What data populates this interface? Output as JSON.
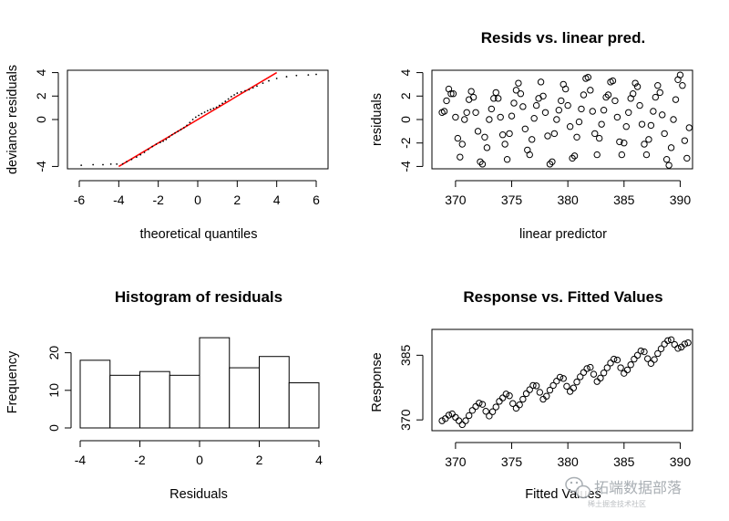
{
  "chart_data": [
    {
      "id": "qq",
      "type": "scatter",
      "title": "",
      "xlabel": "theoretical quantiles",
      "ylabel": "deviance residuals",
      "xlim": [
        -6.6,
        6.6
      ],
      "ylim": [
        -4.2,
        4.2
      ],
      "xticks": [
        "-6",
        "-4",
        "-2",
        "0",
        "2",
        "4",
        "6"
      ],
      "yticks": [
        "-4",
        "0",
        "2",
        "4"
      ],
      "reference_line": {
        "from": [
          -4,
          -4
        ],
        "to": [
          4,
          4
        ],
        "color": "#ff0000"
      },
      "points": [
        [
          -5.9,
          -3.9
        ],
        [
          -5.3,
          -3.85
        ],
        [
          -4.8,
          -3.85
        ],
        [
          -4.4,
          -3.8
        ],
        [
          -4.1,
          -3.8
        ],
        [
          -3.8,
          -3.78
        ],
        [
          -3.6,
          -3.6
        ],
        [
          -3.35,
          -3.4
        ],
        [
          -3.1,
          -3.2
        ],
        [
          -2.9,
          -3.0
        ],
        [
          -2.7,
          -2.8
        ],
        [
          -2.5,
          -2.55
        ],
        [
          -2.3,
          -2.3
        ],
        [
          -2.1,
          -2.1
        ],
        [
          -1.9,
          -1.95
        ],
        [
          -1.75,
          -1.85
        ],
        [
          -1.6,
          -1.7
        ],
        [
          -1.45,
          -1.5
        ],
        [
          -1.3,
          -1.3
        ],
        [
          -1.15,
          -1.15
        ],
        [
          -1.0,
          -1.0
        ],
        [
          -0.85,
          -0.85
        ],
        [
          -0.7,
          -0.7
        ],
        [
          -0.55,
          -0.5
        ],
        [
          -0.4,
          -0.25
        ],
        [
          -0.25,
          0.0
        ],
        [
          -0.1,
          0.2
        ],
        [
          0.05,
          0.35
        ],
        [
          0.2,
          0.5
        ],
        [
          0.35,
          0.62
        ],
        [
          0.5,
          0.75
        ],
        [
          0.65,
          0.85
        ],
        [
          0.8,
          0.95
        ],
        [
          0.95,
          1.05
        ],
        [
          1.1,
          1.2
        ],
        [
          1.25,
          1.38
        ],
        [
          1.4,
          1.55
        ],
        [
          1.55,
          1.75
        ],
        [
          1.7,
          1.95
        ],
        [
          1.85,
          2.1
        ],
        [
          2.0,
          2.25
        ],
        [
          2.2,
          2.35
        ],
        [
          2.4,
          2.45
        ],
        [
          2.6,
          2.55
        ],
        [
          2.8,
          2.7
        ],
        [
          3.0,
          2.85
        ],
        [
          3.3,
          3.1
        ],
        [
          3.6,
          3.3
        ],
        [
          4.0,
          3.5
        ],
        [
          4.5,
          3.65
        ],
        [
          5.0,
          3.75
        ],
        [
          5.6,
          3.8
        ],
        [
          6.0,
          3.85
        ]
      ]
    },
    {
      "id": "resid",
      "type": "scatter",
      "title": "Resids vs. linear pred.",
      "xlabel": "linear predictor",
      "ylabel": "residuals",
      "xlim": [
        367.9,
        391.1
      ],
      "ylim": [
        -4.2,
        4.2
      ],
      "xticks": [
        "370",
        "375",
        "380",
        "385",
        "390"
      ],
      "yticks": [
        "-4",
        "-2",
        "0",
        "2",
        "4"
      ],
      "points": [
        [
          368.8,
          0.6
        ],
        [
          369.0,
          0.7
        ],
        [
          369.2,
          1.6
        ],
        [
          369.4,
          2.6
        ],
        [
          369.6,
          2.2
        ],
        [
          369.8,
          2.2
        ],
        [
          370.0,
          0.2
        ],
        [
          370.2,
          -1.6
        ],
        [
          370.4,
          -3.2
        ],
        [
          370.6,
          -2.1
        ],
        [
          370.8,
          0.0
        ],
        [
          371.0,
          0.6
        ],
        [
          371.2,
          1.7
        ],
        [
          371.4,
          2.4
        ],
        [
          371.6,
          1.9
        ],
        [
          371.8,
          0.6
        ],
        [
          372.0,
          -1.0
        ],
        [
          372.2,
          -3.6
        ],
        [
          372.4,
          -3.8
        ],
        [
          372.6,
          -1.5
        ],
        [
          372.8,
          -2.4
        ],
        [
          373.0,
          0.0
        ],
        [
          373.2,
          0.9
        ],
        [
          373.4,
          1.8
        ],
        [
          373.6,
          2.3
        ],
        [
          373.8,
          1.8
        ],
        [
          374.0,
          0.2
        ],
        [
          374.2,
          -1.3
        ],
        [
          374.4,
          -2.1
        ],
        [
          374.6,
          -3.4
        ],
        [
          374.8,
          -1.2
        ],
        [
          375.0,
          0.3
        ],
        [
          375.2,
          1.4
        ],
        [
          375.4,
          2.5
        ],
        [
          375.6,
          3.1
        ],
        [
          375.8,
          2.2
        ],
        [
          376.0,
          1.1
        ],
        [
          376.2,
          -0.8
        ],
        [
          376.4,
          -2.6
        ],
        [
          376.6,
          -3.0
        ],
        [
          376.8,
          -1.7
        ],
        [
          377.0,
          0.1
        ],
        [
          377.2,
          1.2
        ],
        [
          377.4,
          1.8
        ],
        [
          377.6,
          3.2
        ],
        [
          377.8,
          2.0
        ],
        [
          378.0,
          0.6
        ],
        [
          378.2,
          -1.4
        ],
        [
          378.4,
          -3.8
        ],
        [
          378.6,
          -3.6
        ],
        [
          378.8,
          -1.2
        ],
        [
          379.0,
          0.0
        ],
        [
          379.2,
          0.8
        ],
        [
          379.4,
          1.6
        ],
        [
          379.6,
          3.0
        ],
        [
          379.8,
          2.6
        ],
        [
          380.0,
          1.2
        ],
        [
          380.2,
          -0.6
        ],
        [
          380.4,
          -3.3
        ],
        [
          380.6,
          -3.1
        ],
        [
          380.8,
          -1.5
        ],
        [
          381.0,
          -0.2
        ],
        [
          381.2,
          0.9
        ],
        [
          381.4,
          2.1
        ],
        [
          381.6,
          3.5
        ],
        [
          381.8,
          3.6
        ],
        [
          382.0,
          2.5
        ],
        [
          382.2,
          0.7
        ],
        [
          382.4,
          -1.2
        ],
        [
          382.6,
          -3.0
        ],
        [
          382.8,
          -1.6
        ],
        [
          383.0,
          -0.4
        ],
        [
          383.2,
          0.8
        ],
        [
          383.4,
          1.9
        ],
        [
          383.6,
          2.1
        ],
        [
          383.8,
          3.2
        ],
        [
          384.0,
          3.3
        ],
        [
          384.2,
          1.6
        ],
        [
          384.4,
          0.2
        ],
        [
          384.6,
          -1.9
        ],
        [
          384.8,
          -3.0
        ],
        [
          385.0,
          -2.0
        ],
        [
          385.2,
          -0.6
        ],
        [
          385.4,
          0.6
        ],
        [
          385.6,
          1.8
        ],
        [
          385.8,
          2.2
        ],
        [
          386.0,
          3.1
        ],
        [
          386.2,
          2.8
        ],
        [
          386.4,
          1.2
        ],
        [
          386.6,
          -0.4
        ],
        [
          386.8,
          -2.1
        ],
        [
          387.0,
          -3.0
        ],
        [
          387.2,
          -1.7
        ],
        [
          387.4,
          -0.5
        ],
        [
          387.6,
          0.7
        ],
        [
          387.8,
          1.9
        ],
        [
          388.0,
          2.9
        ],
        [
          388.2,
          2.3
        ],
        [
          388.4,
          0.4
        ],
        [
          388.6,
          -1.2
        ],
        [
          388.8,
          -3.4
        ],
        [
          389.0,
          -3.9
        ],
        [
          389.2,
          -2.4
        ],
        [
          389.4,
          0.0
        ],
        [
          389.6,
          1.7
        ],
        [
          389.8,
          3.4
        ],
        [
          390.0,
          3.8
        ],
        [
          390.2,
          2.9
        ],
        [
          390.4,
          -1.8
        ],
        [
          390.6,
          -3.3
        ],
        [
          390.8,
          -0.7
        ]
      ]
    },
    {
      "id": "hist",
      "type": "bar",
      "title": "Histogram of residuals",
      "xlabel": "Residuals",
      "ylabel": "Frequency",
      "xlim": [
        -4,
        4
      ],
      "ylim": [
        0,
        25
      ],
      "xticks": [
        "-4",
        "-2",
        "0",
        "2",
        "4"
      ],
      "yticks": [
        "0",
        "10",
        "20"
      ],
      "bins": [
        [
          -4,
          -3
        ],
        [
          -3,
          -2
        ],
        [
          -2,
          -1
        ],
        [
          -1,
          0
        ],
        [
          0,
          1
        ],
        [
          1,
          2
        ],
        [
          2,
          3
        ],
        [
          3,
          4
        ]
      ],
      "values": [
        18,
        14,
        15,
        14,
        24,
        16,
        19,
        12
      ]
    },
    {
      "id": "fitted",
      "type": "scatter",
      "title": "Response vs. Fitted Values",
      "xlabel": "Fitted Values",
      "ylabel": "Response",
      "xlim": [
        367.9,
        391.1
      ],
      "ylim": [
        367.5,
        391.0
      ],
      "xticks": [
        "370",
        "375",
        "380",
        "385",
        "390"
      ],
      "yticks": [
        "370",
        "385"
      ],
      "points": [
        [
          368.8,
          369.8
        ],
        [
          369.1,
          370.3
        ],
        [
          369.4,
          371.1
        ],
        [
          369.7,
          371.4
        ],
        [
          370.0,
          370.6
        ],
        [
          370.3,
          369.8
        ],
        [
          370.6,
          368.9
        ],
        [
          370.9,
          369.8
        ],
        [
          371.2,
          371.0
        ],
        [
          371.5,
          372.2
        ],
        [
          371.8,
          373.1
        ],
        [
          372.1,
          373.9
        ],
        [
          372.4,
          373.6
        ],
        [
          372.7,
          372.0
        ],
        [
          373.0,
          370.9
        ],
        [
          373.3,
          371.9
        ],
        [
          373.6,
          373.0
        ],
        [
          373.9,
          374.3
        ],
        [
          374.2,
          375.1
        ],
        [
          374.5,
          376.0
        ],
        [
          374.8,
          375.6
        ],
        [
          375.1,
          373.8
        ],
        [
          375.4,
          372.7
        ],
        [
          375.7,
          373.5
        ],
        [
          376.0,
          374.8
        ],
        [
          376.3,
          376.1
        ],
        [
          376.6,
          377.0
        ],
        [
          376.9,
          378.0
        ],
        [
          377.2,
          377.9
        ],
        [
          377.5,
          376.4
        ],
        [
          377.8,
          374.8
        ],
        [
          378.1,
          375.5
        ],
        [
          378.4,
          376.9
        ],
        [
          378.7,
          378.0
        ],
        [
          379.0,
          379.0
        ],
        [
          379.3,
          379.9
        ],
        [
          379.6,
          379.6
        ],
        [
          379.9,
          377.8
        ],
        [
          380.2,
          376.6
        ],
        [
          380.5,
          377.4
        ],
        [
          380.8,
          378.8
        ],
        [
          381.1,
          380.0
        ],
        [
          381.4,
          381.0
        ],
        [
          381.7,
          381.9
        ],
        [
          382.0,
          382.2
        ],
        [
          382.3,
          380.6
        ],
        [
          382.6,
          378.9
        ],
        [
          382.9,
          379.7
        ],
        [
          383.2,
          380.9
        ],
        [
          383.5,
          382.1
        ],
        [
          383.8,
          383.2
        ],
        [
          384.1,
          384.1
        ],
        [
          384.4,
          383.9
        ],
        [
          384.7,
          382.1
        ],
        [
          385.0,
          380.8
        ],
        [
          385.3,
          381.6
        ],
        [
          385.6,
          382.8
        ],
        [
          385.9,
          384.1
        ],
        [
          386.2,
          385.0
        ],
        [
          386.5,
          386.0
        ],
        [
          386.8,
          385.8
        ],
        [
          387.1,
          384.2
        ],
        [
          387.4,
          383.1
        ],
        [
          387.7,
          384.0
        ],
        [
          388.0,
          385.4
        ],
        [
          388.3,
          386.5
        ],
        [
          388.6,
          387.6
        ],
        [
          388.9,
          388.4
        ],
        [
          389.2,
          388.6
        ],
        [
          389.5,
          387.5
        ],
        [
          389.8,
          386.6
        ],
        [
          390.1,
          386.9
        ],
        [
          390.4,
          387.6
        ],
        [
          390.7,
          387.9
        ]
      ]
    }
  ],
  "watermark": {
    "logo_icon": "wechat-icon",
    "text": "拓端数据部落",
    "sub_text": "稀土掘金技术社区"
  }
}
